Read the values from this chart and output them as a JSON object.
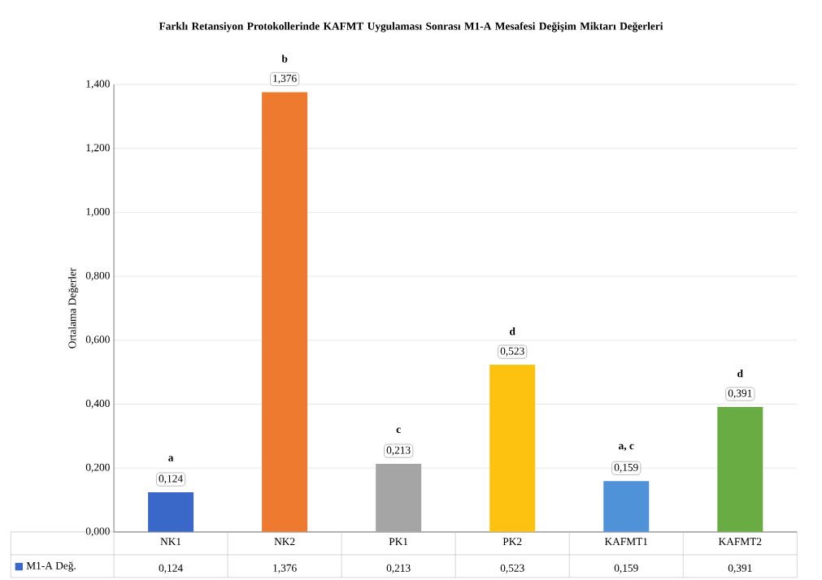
{
  "chart_data": {
    "type": "bar",
    "title": "Farklı Retansiyon Protokollerinde KAFMT Uygulaması Sonrası M1-A Mesafesi Değişim Miktarı Değerleri",
    "ylabel": "Ortalama Değerler",
    "categories": [
      "NK1",
      "NK2",
      "PK1",
      "PK2",
      "KAFMT1",
      "KAFMT2"
    ],
    "series": [
      {
        "name": "M1-A Değ.",
        "color": "#3a68c8",
        "colors": [
          "#3a68c8",
          "#ee7a30",
          "#a5a5a5",
          "#fdc10f",
          "#4f92d8",
          "#6aac44"
        ],
        "values": [
          0.124,
          1.376,
          0.213,
          0.523,
          0.159,
          0.391
        ],
        "value_labels": [
          "0,124",
          "1,376",
          "0,213",
          "0,523",
          "0,159",
          "0,391"
        ]
      }
    ],
    "ylim": [
      0,
      1.4
    ],
    "yticks": [
      {
        "value": 0,
        "label": "0,000"
      },
      {
        "value": 0.2,
        "label": "0,200"
      },
      {
        "value": 0.4,
        "label": "0,400"
      },
      {
        "value": 0.6,
        "label": "0,600"
      },
      {
        "value": 0.8,
        "label": "0,800"
      },
      {
        "value": 1.0,
        "label": "1,000"
      },
      {
        "value": 1.2,
        "label": "1,200"
      },
      {
        "value": 1.4,
        "label": "1,400"
      }
    ],
    "grid": "y",
    "legend": "bottom left",
    "annotations": [
      {
        "text": "a",
        "x": "NK1",
        "y": 0.124
      },
      {
        "text": "b",
        "x": "NK2",
        "y": 1.376
      },
      {
        "text": "c",
        "x": "PK1",
        "y": 0.213
      },
      {
        "text": "d",
        "x": "PK2",
        "y": 0.523
      },
      {
        "text": "a, c",
        "x": "KAFMT1",
        "y": 0.159
      },
      {
        "text": "d",
        "x": "KAFMT2",
        "y": 0.391
      }
    ]
  }
}
